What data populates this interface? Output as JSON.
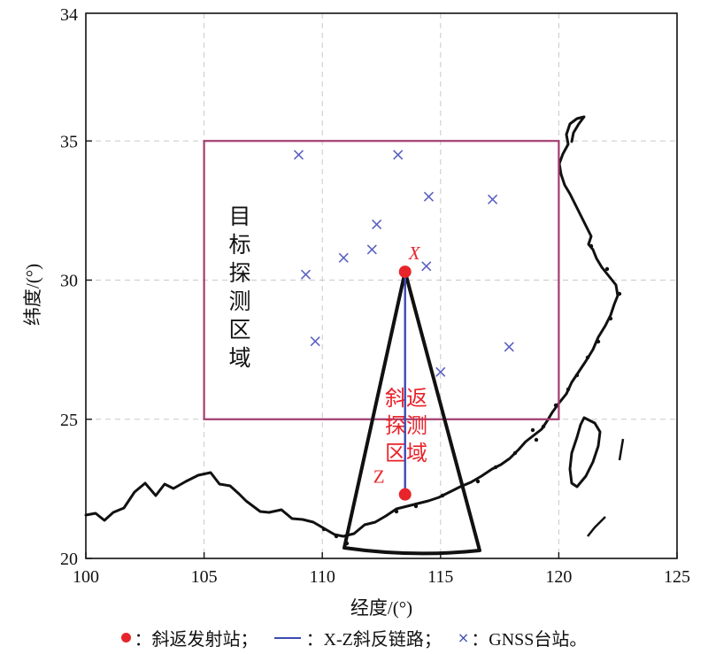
{
  "title": "",
  "axes": {
    "xlabel": "经度/(°)",
    "ylabel": "纬度/(°)",
    "xlim": [
      100,
      125
    ],
    "ylim": [
      20,
      34
    ],
    "xticks": [
      100,
      105,
      110,
      115,
      120,
      125
    ],
    "yticks": [
      20,
      25,
      30,
      35
    ],
    "ytick_labels": [
      "20",
      "25",
      "30",
      "35"
    ],
    "ytick_top_label": "34",
    "grid": "dashed"
  },
  "target_region": {
    "label": "目标探测区域",
    "lon": [
      105,
      120
    ],
    "lat": [
      25,
      35
    ],
    "color": "#a23c6e"
  },
  "backscatter_region": {
    "label": "斜返探测区域",
    "color": "#111111",
    "label_color": "#e8242b"
  },
  "stations": {
    "transmitter": {
      "label": "X",
      "lon": 113.5,
      "lat": 30.3,
      "color": "#e8242b"
    },
    "receiver": {
      "label": "Z",
      "lon": 113.5,
      "lat": 22.3,
      "color": "#e8242b"
    }
  },
  "link_color": "#3b4bb5",
  "gnss_stations": [
    {
      "lon": 109.0,
      "lat": 34.5
    },
    {
      "lon": 113.2,
      "lat": 34.5
    },
    {
      "lon": 114.5,
      "lat": 33.0
    },
    {
      "lon": 117.2,
      "lat": 32.9
    },
    {
      "lon": 112.3,
      "lat": 32.0
    },
    {
      "lon": 110.9,
      "lat": 30.8
    },
    {
      "lon": 112.1,
      "lat": 31.1
    },
    {
      "lon": 114.4,
      "lat": 30.5
    },
    {
      "lon": 109.3,
      "lat": 30.2
    },
    {
      "lon": 109.7,
      "lat": 27.8
    },
    {
      "lon": 117.9,
      "lat": 27.6
    },
    {
      "lon": 115.0,
      "lat": 26.7
    }
  ],
  "legend": {
    "dot_text": "：斜返发射站；",
    "line_text": "：X-Z斜反链路；",
    "cross_text": "：GNSS台站。"
  }
}
